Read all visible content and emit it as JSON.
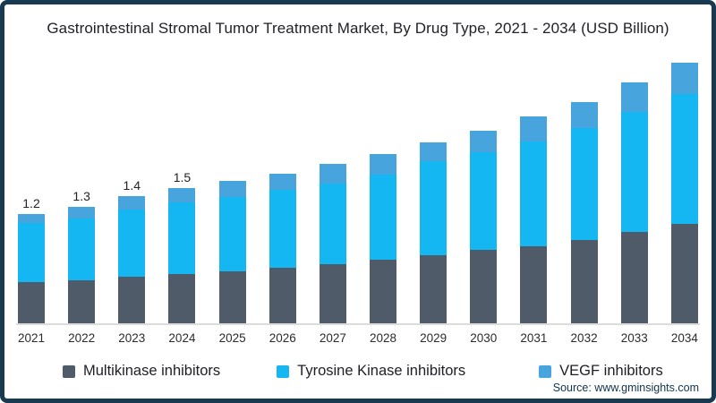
{
  "title": "Gastrointestinal Stromal Tumor Treatment Market, By Drug Type, 2021 - 2034 (USD Billion)",
  "source": "Source: www.gminsights.com",
  "colors": {
    "multikinase": "#4f5b68",
    "tyrosine_kinase": "#15b7f2",
    "vegf": "#47a4dc",
    "border": "#18394f",
    "axis_line": "#dcdcdc"
  },
  "legend": [
    {
      "label": "Multikinase inhibitors",
      "color_key": "multikinase"
    },
    {
      "label": "Tyrosine Kinase inhibitors",
      "color_key": "tyrosine_kinase"
    },
    {
      "label": "VEGF inhibitors",
      "color_key": "vegf"
    }
  ],
  "chart_data": {
    "type": "bar",
    "stacked": true,
    "title": "Gastrointestinal Stromal Tumor Treatment Market, By Drug Type, 2021 - 2034 (USD Billion)",
    "xlabel": "",
    "ylabel": "",
    "units": "USD Billion",
    "grid": false,
    "legend_position": "bottom",
    "ylim": [
      0,
      3
    ],
    "categories": [
      "2021",
      "2022",
      "2023",
      "2024",
      "2025",
      "2026",
      "2027",
      "2028",
      "2029",
      "2030",
      "2031",
      "2032",
      "2033",
      "2034"
    ],
    "series": [
      {
        "name": "Multikinase inhibitors",
        "color_key": "multikinase",
        "values": [
          0.46,
          0.48,
          0.51,
          0.54,
          0.57,
          0.61,
          0.65,
          0.7,
          0.75,
          0.81,
          0.85,
          0.92,
          1.01,
          1.1
        ]
      },
      {
        "name": "Tyrosine Kinase inhibitors",
        "color_key": "tyrosine_kinase",
        "values": [
          0.65,
          0.68,
          0.74,
          0.79,
          0.82,
          0.86,
          0.89,
          0.94,
          1.04,
          1.08,
          1.16,
          1.24,
          1.33,
          1.44
        ]
      },
      {
        "name": "VEGF inhibitors",
        "color_key": "vegf",
        "values": [
          0.1,
          0.13,
          0.15,
          0.16,
          0.18,
          0.18,
          0.22,
          0.23,
          0.21,
          0.24,
          0.28,
          0.29,
          0.33,
          0.35
        ]
      }
    ],
    "totals": [
      1.21,
      1.29,
      1.4,
      1.49,
      1.57,
      1.65,
      1.76,
      1.87,
      2.0,
      2.13,
      2.29,
      2.45,
      2.67,
      2.89
    ],
    "bar_value_labels": [
      "1.2",
      "1.3",
      "1.4",
      "1.5",
      "",
      "",
      "",
      "",
      "",
      "",
      "",
      "",
      "",
      ""
    ]
  }
}
